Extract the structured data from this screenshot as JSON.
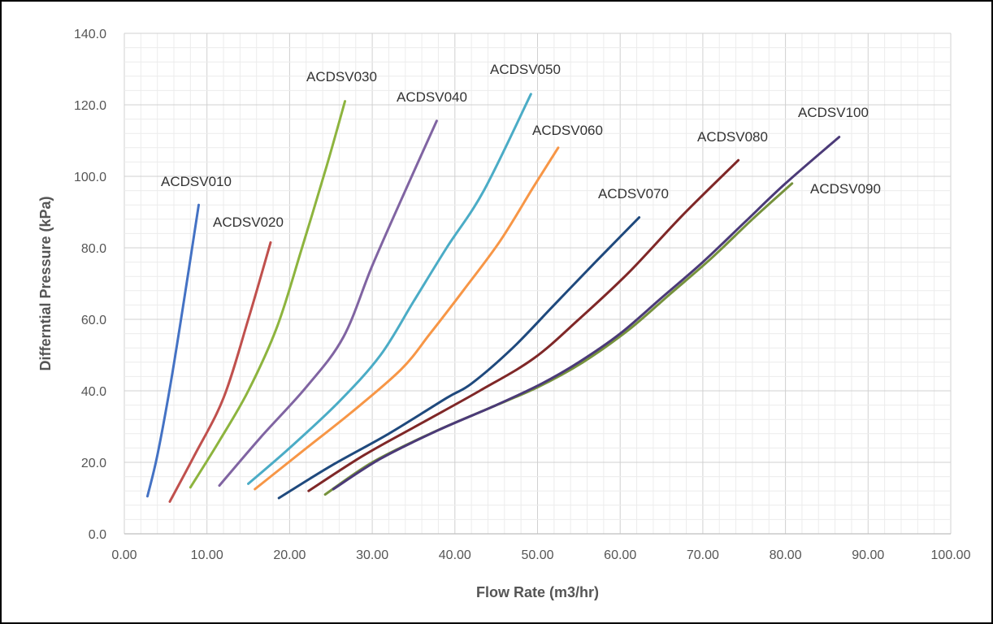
{
  "chart_data": {
    "type": "line",
    "xlabel": "Flow Rate (m3/hr)",
    "ylabel": "Differntial Pressure (kPa)",
    "xlim": [
      0,
      100
    ],
    "ylim": [
      0,
      140
    ],
    "xticks": [
      "0.00",
      "10.00",
      "20.00",
      "30.00",
      "40.00",
      "50.00",
      "60.00",
      "70.00",
      "80.00",
      "90.00",
      "100.00"
    ],
    "yticks": [
      "0.0",
      "20.0",
      "40.0",
      "60.0",
      "80.0",
      "100.0",
      "120.0",
      "140.0"
    ],
    "grid": true,
    "legend": "inline labels",
    "series": [
      {
        "name": "ACDSV010",
        "color": "#4472C4",
        "x": [
          2.8,
          4.0,
          5.6,
          7.2,
          9.0
        ],
        "y": [
          10.5,
          22,
          42,
          65,
          92
        ]
      },
      {
        "name": "ACDSV020",
        "color": "#C0504D",
        "x": [
          5.5,
          8.5,
          12.0,
          15.0,
          17.7
        ],
        "y": [
          9,
          22,
          38,
          60,
          81.5
        ]
      },
      {
        "name": "ACDSV030",
        "color": "#8DB43E",
        "x": [
          8.0,
          11.5,
          15.0,
          18.5,
          21.5,
          24.5,
          26.7
        ],
        "y": [
          13,
          26,
          40,
          58,
          80,
          103,
          121
        ]
      },
      {
        "name": "ACDSV040",
        "color": "#8064A2",
        "x": [
          11.5,
          16.5,
          22.0,
          26.5,
          30.0,
          34.0,
          37.8
        ],
        "y": [
          13.5,
          27,
          41,
          55,
          75,
          96,
          115.5
        ]
      },
      {
        "name": "ACDSV050",
        "color": "#4BACC6",
        "x": [
          15.0,
          20.0,
          26.0,
          31.0,
          35.0,
          39.0,
          43.5,
          49.2
        ],
        "y": [
          14,
          24,
          37,
          50,
          65,
          80,
          96,
          123
        ]
      },
      {
        "name": "ACDSV060",
        "color": "#F79646",
        "x": [
          15.8,
          21.5,
          27.5,
          33.5,
          37.0,
          41.0,
          45.5,
          49.5,
          52.5
        ],
        "y": [
          12.5,
          23,
          34,
          46,
          56,
          68,
          82,
          97,
          108
        ]
      },
      {
        "name": "ACDSV070",
        "color": "#1F497D",
        "x": [
          18.7,
          25.0,
          32.0,
          39.0,
          42.0,
          47.0,
          52.0,
          57.0,
          62.3
        ],
        "y": [
          10,
          19,
          28,
          38,
          42,
          52,
          64,
          76,
          88.5
        ]
      },
      {
        "name": "ACDSV080",
        "color": "#7F2727",
        "x": [
          22.3,
          29.0,
          36.0,
          43.0,
          49.5,
          55.0,
          61.0,
          67.5,
          74.3
        ],
        "y": [
          12,
          22,
          31,
          40,
          49,
          60,
          73,
          89,
          104.5
        ]
      },
      {
        "name": "ACDSV090",
        "color": "#76923C",
        "x": [
          24.3,
          30.0,
          37.0,
          44.0,
          50.0,
          55.5,
          61.0,
          66.0,
          71.0,
          76.0,
          80.8
        ],
        "y": [
          11,
          20,
          28,
          35,
          41,
          48,
          57,
          67,
          77,
          88,
          98
        ]
      },
      {
        "name": "ACDSV100",
        "color": "#4B3A78",
        "x": [
          25.3,
          31.0,
          38.0,
          45.0,
          50.5,
          55.0,
          60.0,
          65.0,
          70.0,
          75.0,
          80.0,
          86.5
        ],
        "y": [
          12.5,
          21,
          29,
          36,
          42,
          48,
          56,
          66,
          76,
          87,
          98,
          111
        ]
      }
    ]
  }
}
